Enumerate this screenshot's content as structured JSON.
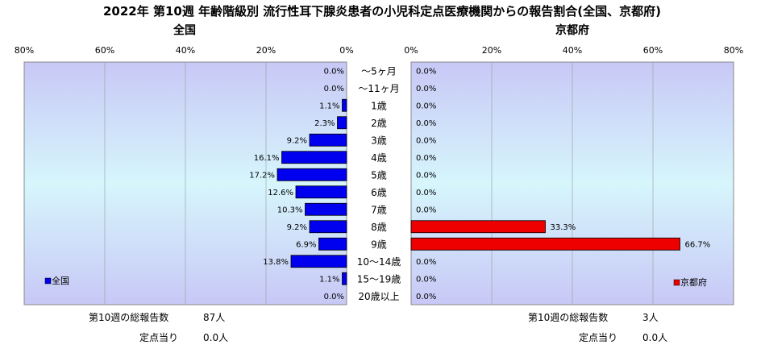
{
  "chart_data": {
    "type": "bar",
    "title": "2022年 第10週 年齢階級別 流行性耳下腺炎患者の小児科定点医療機関からの報告割合(全国、京都府)",
    "categories": [
      "～5ヶ月",
      "～11ヶ月",
      "1歳",
      "2歳",
      "3歳",
      "4歳",
      "5歳",
      "6歳",
      "7歳",
      "8歳",
      "9歳",
      "10～14歳",
      "15～19歳",
      "20歳以上"
    ],
    "xlim": [
      0,
      80
    ],
    "ticks": [
      "80%",
      "60%",
      "40%",
      "20%",
      "0%",
      "0%",
      "20%",
      "40%",
      "60%",
      "80%"
    ],
    "series": [
      {
        "name": "全国",
        "panel_title": "全国",
        "color": "#0000ee",
        "values": [
          0.0,
          0.0,
          1.1,
          2.3,
          9.2,
          16.1,
          17.2,
          12.6,
          10.3,
          9.2,
          6.9,
          13.8,
          1.1,
          0.0
        ],
        "labels": [
          "0.0%",
          "0.0%",
          "1.1%",
          "2.3%",
          "9.2%",
          "16.1%",
          "17.2%",
          "12.6%",
          "10.3%",
          "9.2%",
          "6.9%",
          "13.8%",
          "1.1%",
          "0.0%"
        ]
      },
      {
        "name": "京都府",
        "panel_title": "京都府",
        "color": "#ee0000",
        "values": [
          0.0,
          0.0,
          0.0,
          0.0,
          0.0,
          0.0,
          0.0,
          0.0,
          0.0,
          33.3,
          66.7,
          0.0,
          0.0,
          0.0
        ],
        "labels": [
          "0.0%",
          "0.0%",
          "0.0%",
          "0.0%",
          "0.0%",
          "0.0%",
          "0.0%",
          "0.0%",
          "0.0%",
          "33.3%",
          "66.7%",
          "0.0%",
          "0.0%",
          "0.0%"
        ]
      }
    ],
    "legend": "bottom-left"
  },
  "footer": {
    "national_total_label": "第10週の総報告数",
    "national_total_value": "87人",
    "national_per_label": "定点当り",
    "national_per_value": "0.0人",
    "kyoto_total_label": "第10週の総報告数",
    "kyoto_total_value": "3人",
    "kyoto_per_label": "定点当り",
    "kyoto_per_value": "0.0人"
  }
}
